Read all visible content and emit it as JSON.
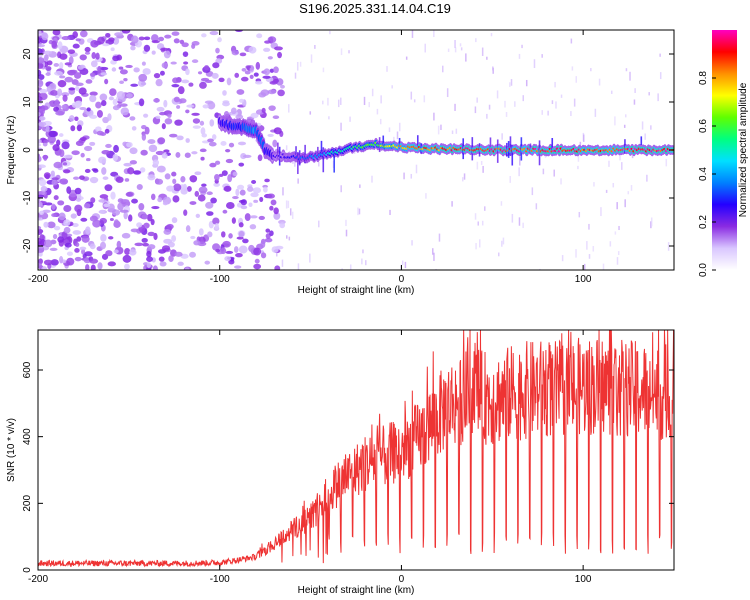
{
  "title": "S196.2025.331.14.04.C19",
  "chart_data": [
    {
      "type": "heatmap",
      "title": "S196.2025.331.14.04.C19",
      "xlabel": "Height of straight line (km)",
      "ylabel": "Frequency (Hz)",
      "xlim": [
        -200,
        150
      ],
      "ylim": [
        -25,
        25
      ],
      "x_ticks": [
        -200,
        -100,
        0,
        100
      ],
      "x_tick_labels": [
        "-200",
        "-100",
        "0",
        "100"
      ],
      "y_ticks": [
        -20,
        -10,
        0,
        10,
        20
      ],
      "y_tick_labels": [
        "-20",
        "-10",
        "0",
        "10",
        "20"
      ],
      "colorbar": {
        "label": "Normalized spectral amplitude",
        "range": [
          0.0,
          1.0
        ],
        "ticks": [
          0.0,
          0.2,
          0.4,
          0.6,
          0.8
        ],
        "tick_labels": [
          "0.0",
          "0.2",
          "0.4",
          "0.6",
          "0.8"
        ],
        "colormap": [
          "#ffffff",
          "#d9c6ff",
          "#8a2be2",
          "#2400ff",
          "#0080ff",
          "#00e0ff",
          "#00ff80",
          "#60ff00",
          "#ffff00",
          "#ff9000",
          "#ff0000",
          "#ff00c0"
        ]
      },
      "ridge": {
        "x_km": [
          -200,
          -150,
          -100,
          -95,
          -90,
          -85,
          -80,
          -75,
          -70,
          -65,
          -60,
          -55,
          -50,
          -45,
          -40,
          -35,
          -30,
          -25,
          -20,
          -15,
          -10,
          -5,
          0,
          20,
          50,
          100,
          150
        ],
        "freq_hz": [
          0,
          0,
          6,
          5,
          5,
          4.5,
          4,
          0,
          -1.2,
          -1.2,
          -1.5,
          -1.8,
          -1.5,
          -1.2,
          -0.8,
          -0.4,
          0.2,
          0.6,
          0.9,
          1.3,
          1.0,
          0.8,
          0.5,
          0.2,
          0.0,
          0.0,
          0.0
        ],
        "amplitude": [
          0.15,
          0.15,
          0.25,
          0.3,
          0.3,
          0.35,
          0.4,
          0.3,
          0.25,
          0.25,
          0.3,
          0.35,
          0.4,
          0.45,
          0.5,
          0.5,
          0.55,
          0.6,
          0.62,
          0.65,
          0.7,
          0.75,
          0.8,
          0.9,
          0.95,
          0.95,
          0.95
        ]
      }
    },
    {
      "type": "line",
      "title": "",
      "xlabel": "Height of straight line (km)",
      "ylabel": "SNR (10 * v/v)",
      "xlim": [
        -200,
        150
      ],
      "ylim": [
        0,
        720
      ],
      "x_ticks": [
        -200,
        -100,
        0,
        100
      ],
      "x_tick_labels": [
        "-200",
        "-100",
        "0",
        "100"
      ],
      "y_ticks": [
        0,
        200,
        400,
        600
      ],
      "y_tick_labels": [
        "0",
        "200",
        "400",
        "600"
      ],
      "color": "#ee3333",
      "series": [
        {
          "name": "SNR",
          "x": [
            -200,
            -180,
            -160,
            -140,
            -120,
            -100,
            -90,
            -80,
            -75,
            -70,
            -65,
            -60,
            -55,
            -50,
            -45,
            -40,
            -35,
            -30,
            -25,
            -20,
            -15,
            -10,
            -5,
            0,
            5,
            10,
            15,
            20,
            25,
            30,
            35,
            40,
            45,
            50,
            55,
            60,
            70,
            80,
            90,
            100,
            110,
            120,
            130,
            140,
            150
          ],
          "y": [
            20,
            20,
            20,
            20,
            20,
            22,
            30,
            40,
            60,
            80,
            100,
            120,
            140,
            160,
            190,
            230,
            260,
            280,
            300,
            320,
            330,
            340,
            350,
            360,
            380,
            400,
            430,
            460,
            490,
            510,
            520,
            530,
            520,
            510,
            520,
            530,
            540,
            545,
            540,
            550,
            555,
            545,
            540,
            535,
            530
          ],
          "dropout_spacing_km": 6.5,
          "dropout_start_km": -40,
          "dropout_floor": 80,
          "max_peak": 720
        }
      ]
    }
  ]
}
